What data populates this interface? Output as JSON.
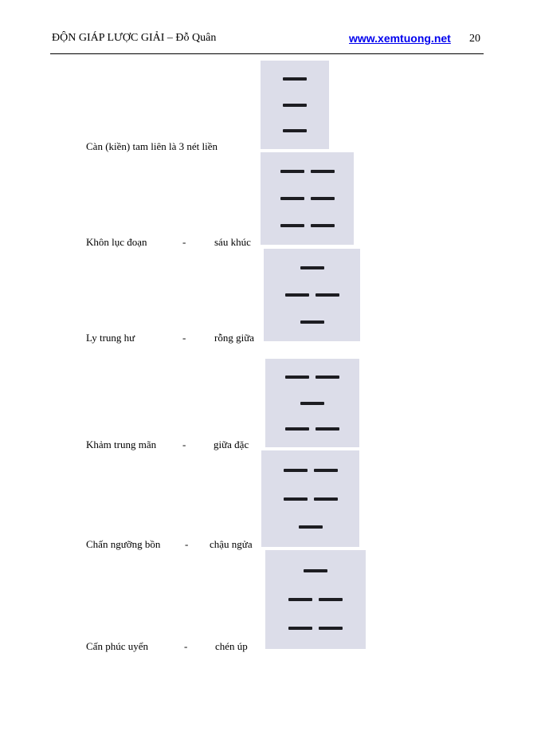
{
  "header": {
    "title": "ĐỘN GIÁP LƯỢC GIẢI – Đỗ Quân",
    "link": "www.xemtuong.net",
    "page_number": "20"
  },
  "items": [
    {
      "text": "Càn (kiền) tam liên  là 3 nét liền",
      "lines": [
        1,
        1,
        1
      ]
    },
    {
      "term": "Khôn lục đoạn",
      "dash": "-",
      "meaning": "sáu khúc",
      "lines": [
        0,
        0,
        0
      ]
    },
    {
      "term": "Ly trung hư",
      "dash": "-",
      "meaning": "rỗng giữa",
      "lines": [
        1,
        0,
        1
      ]
    },
    {
      "term": "Khảm trung mãn",
      "dash": "-",
      "meaning": "giữa đặc",
      "lines": [
        0,
        1,
        0
      ]
    },
    {
      "term": "Chấn ngưỡng bồn",
      "dash": "-",
      "meaning": "chậu ngửa",
      "lines": [
        0,
        0,
        1
      ]
    },
    {
      "term": "Cấn phúc uyển",
      "dash": "-",
      "meaning": "chén úp",
      "lines": [
        1,
        0,
        0
      ]
    }
  ]
}
